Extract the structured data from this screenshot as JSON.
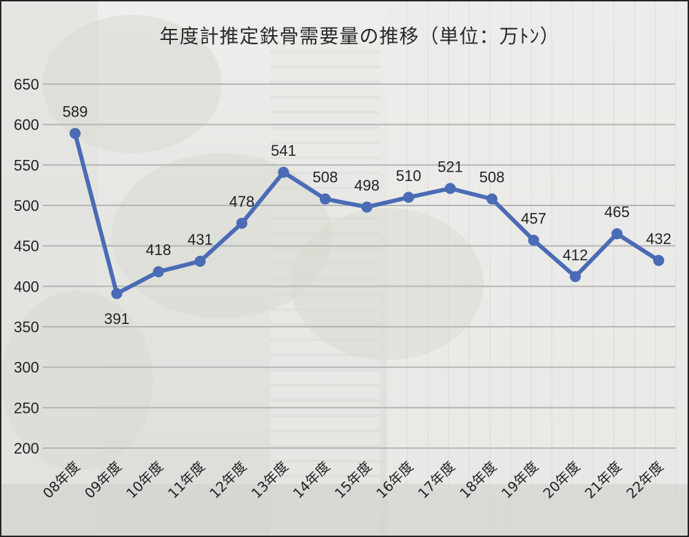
{
  "chart_data": {
    "type": "line",
    "title": "年度計推定鉄骨需要量の推移（単位：万ﾄﾝ）",
    "categories": [
      "08年度",
      "09年度",
      "10年度",
      "11年度",
      "12年度",
      "13年度",
      "14年度",
      "15年度",
      "16年度",
      "17年度",
      "18年度",
      "19年度",
      "20年度",
      "21年度",
      "22年度"
    ],
    "series": [
      {
        "values": [
          589,
          391,
          418,
          431,
          478,
          541,
          508,
          498,
          510,
          521,
          508,
          457,
          412,
          465,
          432
        ]
      }
    ],
    "data_labels": [
      "589",
      "391",
      "418",
      "431",
      "478",
      "541",
      "508",
      "498",
      "510",
      "521",
      "508",
      "457",
      "412",
      "465",
      "432"
    ],
    "yticks": [
      "650",
      "600",
      "550",
      "500",
      "450",
      "400",
      "350",
      "300",
      "250",
      "200"
    ],
    "ylim": [
      200,
      650
    ],
    "grid": true,
    "line_color": "#4a6bb5"
  }
}
